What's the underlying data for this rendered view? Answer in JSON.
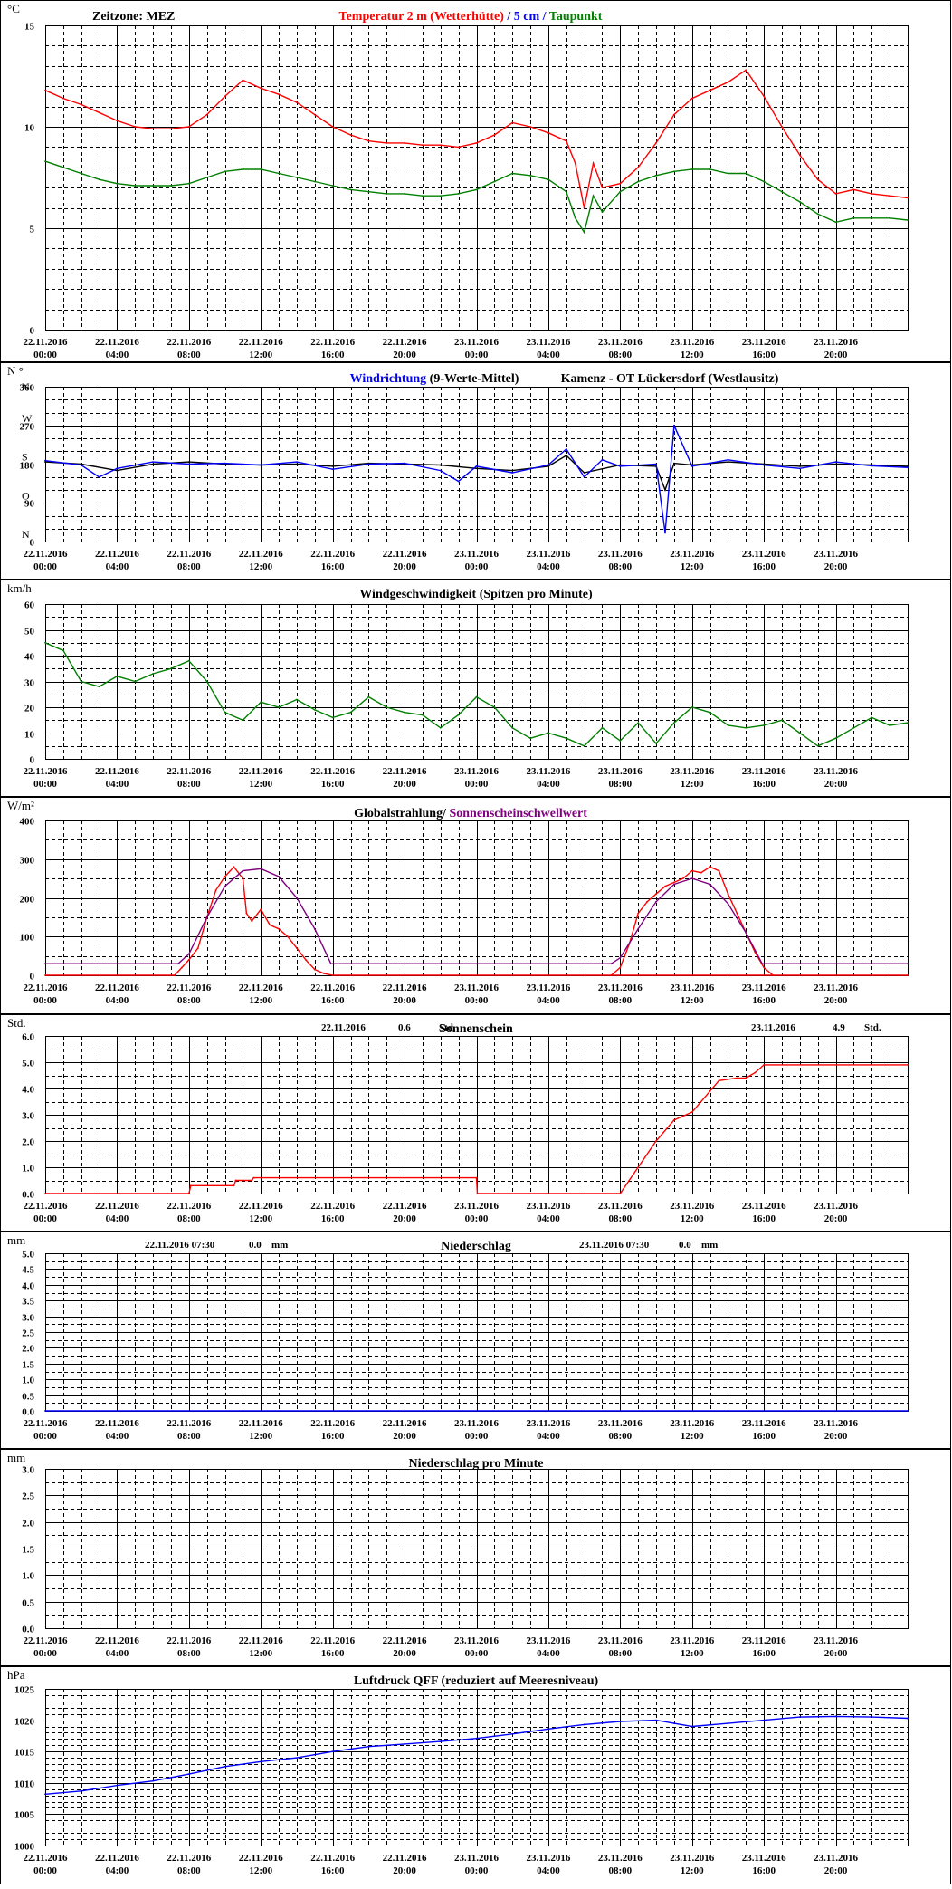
{
  "page": {
    "background": "#ffffff",
    "grid_color": "#000000"
  },
  "x_axis": {
    "tick_labels": [
      {
        "date": "22.11.2016",
        "time": "00:00"
      },
      {
        "date": "22.11.2016",
        "time": "04:00"
      },
      {
        "date": "22.11.2016",
        "time": "08:00"
      },
      {
        "date": "22.11.2016",
        "time": "12:00"
      },
      {
        "date": "22.11.2016",
        "time": "16:00"
      },
      {
        "date": "22.11.2016",
        "time": "20:00"
      },
      {
        "date": "23.11.2016",
        "time": "00:00"
      },
      {
        "date": "23.11.2016",
        "time": "04:00"
      },
      {
        "date": "23.11.2016",
        "time": "08:00"
      },
      {
        "date": "23.11.2016",
        "time": "12:00"
      },
      {
        "date": "23.11.2016",
        "time": "16:00"
      },
      {
        "date": "23.11.2016",
        "time": "20:00"
      }
    ],
    "range_hours": [
      0,
      48
    ]
  },
  "chart_data": [
    {
      "id": "temperature",
      "type": "line",
      "unit_label": "°C",
      "header_left": "Zeitzone: MEZ",
      "title_parts": [
        {
          "text": "Temperatur 2 m (Wetterhütte)",
          "color": "#ff0000"
        },
        {
          "text": " / ",
          "color": "#0000ff"
        },
        {
          "text": "5 cm",
          "color": "#0000ff"
        },
        {
          "text": " / ",
          "color": "#0000ff"
        },
        {
          "text": "Taupunkt",
          "color": "#008000"
        }
      ],
      "ylim": [
        0,
        15
      ],
      "y_ticks": [
        0,
        5,
        10,
        15
      ],
      "minor_step": 1,
      "series": [
        {
          "color": "#ff0000",
          "x": [
            0,
            1,
            2,
            3,
            4,
            5,
            6,
            7,
            8,
            9,
            10,
            11,
            12,
            13,
            14,
            15,
            16,
            17,
            18,
            19,
            20,
            21,
            22,
            23,
            24,
            25,
            26,
            27,
            28,
            29,
            29.5,
            30,
            30.5,
            31,
            32,
            33,
            34,
            35,
            36,
            37,
            38,
            39,
            40,
            41,
            42,
            43,
            44,
            45,
            46,
            47,
            48
          ],
          "y": [
            11.8,
            11.4,
            11.1,
            10.7,
            10.3,
            10.0,
            9.9,
            9.9,
            10.0,
            10.6,
            11.5,
            12.3,
            11.9,
            11.6,
            11.2,
            10.6,
            10.0,
            9.6,
            9.3,
            9.2,
            9.2,
            9.1,
            9.1,
            9.0,
            9.2,
            9.6,
            10.2,
            10.0,
            9.7,
            9.3,
            8.2,
            6.0,
            8.2,
            7.0,
            7.2,
            8.0,
            9.2,
            10.6,
            11.4,
            11.8,
            12.2,
            12.8,
            11.5,
            10.0,
            8.6,
            7.4,
            6.7,
            6.9,
            6.7,
            6.6,
            6.5
          ]
        },
        {
          "color": "#008000",
          "x": [
            0,
            1,
            2,
            3,
            4,
            5,
            6,
            7,
            8,
            9,
            10,
            11,
            12,
            13,
            14,
            15,
            16,
            17,
            18,
            19,
            20,
            21,
            22,
            23,
            24,
            25,
            26,
            27,
            28,
            29,
            29.5,
            30,
            30.5,
            31,
            32,
            33,
            34,
            35,
            36,
            37,
            38,
            39,
            40,
            41,
            42,
            43,
            44,
            45,
            46,
            47,
            48
          ],
          "y": [
            8.3,
            8.0,
            7.7,
            7.4,
            7.2,
            7.1,
            7.1,
            7.1,
            7.2,
            7.5,
            7.8,
            7.9,
            7.9,
            7.7,
            7.5,
            7.3,
            7.1,
            6.9,
            6.8,
            6.7,
            6.7,
            6.6,
            6.6,
            6.7,
            6.9,
            7.3,
            7.7,
            7.6,
            7.4,
            6.8,
            5.5,
            4.8,
            6.6,
            5.8,
            6.8,
            7.3,
            7.6,
            7.8,
            7.9,
            7.9,
            7.7,
            7.7,
            7.3,
            6.8,
            6.3,
            5.7,
            5.3,
            5.5,
            5.5,
            5.5,
            5.4
          ]
        }
      ]
    },
    {
      "id": "wind_direction",
      "type": "line",
      "unit_label": "N °",
      "title_parts": [
        {
          "text": "Windrichtung",
          "color": "#0000ff"
        },
        {
          "text": " (9-Werte-Mittel)",
          "color": "#000000"
        }
      ],
      "station": "Kamenz - OT Lückersdorf (Westlausitz)",
      "ylim": [
        0,
        360
      ],
      "y_ticks": [
        0,
        90,
        180,
        270,
        360
      ],
      "compass_labels": [
        {
          "text": "N",
          "value": 360
        },
        {
          "text": "W",
          "value": 270
        },
        {
          "text": "S",
          "value": 180
        },
        {
          "text": "O",
          "value": 90
        },
        {
          "text": "N",
          "value": 0
        }
      ],
      "minor_step": 30,
      "series": [
        {
          "color": "#000000",
          "x": [
            0,
            2,
            4,
            6,
            8,
            10,
            12,
            14,
            16,
            18,
            20,
            22,
            24,
            26,
            28,
            29,
            30,
            32,
            34,
            34.5,
            35,
            36,
            38,
            40,
            42,
            44,
            46,
            48
          ],
          "y": [
            185,
            180,
            165,
            180,
            185,
            180,
            178,
            180,
            175,
            182,
            180,
            178,
            170,
            165,
            175,
            200,
            160,
            178,
            175,
            120,
            182,
            178,
            185,
            180,
            175,
            180,
            178,
            175
          ]
        },
        {
          "color": "#0000ff",
          "x": [
            0,
            2,
            3,
            4,
            6,
            8,
            10,
            12,
            14,
            16,
            18,
            20,
            22,
            23,
            24,
            26,
            28,
            29,
            30,
            31,
            32,
            34,
            34.5,
            35,
            36,
            38,
            40,
            42,
            44,
            46,
            48
          ],
          "y": [
            188,
            178,
            150,
            170,
            185,
            180,
            182,
            178,
            185,
            168,
            180,
            182,
            165,
            140,
            175,
            160,
            178,
            215,
            150,
            190,
            175,
            180,
            20,
            270,
            175,
            190,
            178,
            170,
            185,
            176,
            172
          ]
        }
      ]
    },
    {
      "id": "wind_speed",
      "type": "line",
      "unit_label": "km/h",
      "title": "Windgeschwindigkeit (Spitzen pro Minute)",
      "ylim": [
        0,
        60
      ],
      "y_ticks": [
        0,
        10,
        20,
        30,
        40,
        50,
        60
      ],
      "minor_step": 5,
      "series": [
        {
          "color": "#008000",
          "x": [
            0,
            1,
            2,
            3,
            4,
            5,
            6,
            7,
            8,
            9,
            10,
            11,
            12,
            13,
            14,
            15,
            16,
            17,
            18,
            19,
            20,
            21,
            22,
            23,
            24,
            25,
            26,
            27,
            28,
            29,
            30,
            31,
            32,
            33,
            34,
            35,
            36,
            37,
            38,
            39,
            40,
            41,
            42,
            43,
            44,
            45,
            46,
            47,
            48
          ],
          "y": [
            45,
            42,
            30,
            28,
            32,
            30,
            33,
            35,
            38,
            30,
            18,
            15,
            22,
            20,
            23,
            19,
            16,
            18,
            24,
            20,
            18,
            17,
            12,
            17,
            24,
            20,
            12,
            8,
            10,
            8,
            5,
            12,
            7,
            14,
            6,
            14,
            20,
            18,
            13,
            12,
            13,
            15,
            10,
            5,
            8,
            12,
            16,
            13,
            14
          ]
        }
      ]
    },
    {
      "id": "global_radiation",
      "type": "line",
      "unit_label": "W/m²",
      "title_parts": [
        {
          "text": "Globalstrahlung/",
          "color": "#000000"
        },
        {
          "text": " Sonnenscheinschwellwert",
          "color": "#800080"
        }
      ],
      "ylim": [
        0,
        400
      ],
      "y_ticks": [
        0,
        100,
        200,
        300,
        400
      ],
      "minor_step": 50,
      "series": [
        {
          "color": "#ff0000",
          "x": [
            0,
            7.2,
            7.6,
            8,
            8.5,
            9,
            9.5,
            10,
            10.5,
            11,
            11.2,
            11.5,
            12,
            12.5,
            13,
            13.5,
            14,
            14.5,
            15,
            15.5,
            16,
            48
          ],
          "y": [
            0,
            0,
            20,
            40,
            70,
            150,
            220,
            255,
            280,
            250,
            160,
            140,
            170,
            130,
            120,
            100,
            70,
            40,
            15,
            5,
            0,
            0
          ]
        },
        {
          "color": "#ff0000",
          "x": [
            31.5,
            32,
            32.5,
            33,
            33.5,
            34,
            34.5,
            35,
            35.5,
            36,
            36.5,
            37,
            37.5,
            38,
            38.5,
            39,
            39.5,
            40,
            40.5
          ],
          "y": [
            0,
            20,
            80,
            160,
            190,
            210,
            230,
            240,
            250,
            270,
            265,
            280,
            270,
            210,
            160,
            110,
            60,
            20,
            0
          ]
        },
        {
          "color": "#800080",
          "x": [
            0,
            7.4,
            8,
            9,
            10,
            11,
            12,
            13,
            14,
            15,
            15.9,
            31.5,
            32,
            33,
            34,
            35,
            36,
            37,
            38,
            39,
            39.9,
            48
          ],
          "y": [
            30,
            30,
            55,
            150,
            230,
            270,
            275,
            255,
            200,
            120,
            30,
            30,
            45,
            120,
            190,
            235,
            250,
            235,
            185,
            110,
            30,
            30
          ]
        }
      ]
    },
    {
      "id": "sunshine",
      "type": "line",
      "unit_label": "Std.",
      "title": "Sonnenschein",
      "daily_totals": [
        {
          "date": "22.11.2016",
          "value": "0.6",
          "unit": "Std."
        },
        {
          "date": "23.11.2016",
          "value": "4.9",
          "unit": "Std."
        }
      ],
      "ylim": [
        0,
        6
      ],
      "y_ticks": [
        0,
        1,
        2,
        3,
        4,
        5,
        6
      ],
      "y_tick_labels": [
        "0.0",
        "1.0",
        "2.0",
        "3.0",
        "4.0",
        "5.0",
        "6.0"
      ],
      "minor_step": 0.5,
      "series": [
        {
          "color": "#ff0000",
          "x": [
            0,
            8,
            8.1,
            10.5,
            10.6,
            11.5,
            11.6,
            24,
            24.05,
            32,
            33,
            34,
            35,
            36,
            37,
            37.5,
            38.5,
            39,
            39.5,
            40,
            48
          ],
          "y": [
            0,
            0,
            0.3,
            0.3,
            0.5,
            0.5,
            0.6,
            0.6,
            0,
            0,
            1.0,
            2.0,
            2.8,
            3.1,
            3.9,
            4.3,
            4.4,
            4.4,
            4.6,
            4.9,
            4.9
          ]
        }
      ]
    },
    {
      "id": "precipitation",
      "type": "line",
      "unit_label": "mm",
      "title": "Niederschlag",
      "daily_totals": [
        {
          "date": "22.11.2016 07:30",
          "value": "0.0",
          "unit": "mm"
        },
        {
          "date": "23.11.2016 07:30",
          "value": "0.0",
          "unit": "mm"
        }
      ],
      "ylim": [
        0,
        5
      ],
      "y_ticks": [
        0,
        0.5,
        1,
        1.5,
        2,
        2.5,
        3,
        3.5,
        4,
        4.5,
        5
      ],
      "y_tick_labels": [
        "0.0",
        "0.5",
        "1.0",
        "1.5",
        "2.0",
        "2.5",
        "3.0",
        "3.5",
        "4.0",
        "4.5",
        "5.0"
      ],
      "minor_step": 0.25,
      "series": [
        {
          "color": "#0000ff",
          "x": [
            0,
            48
          ],
          "y": [
            0,
            0
          ]
        }
      ]
    },
    {
      "id": "precipitation_per_minute",
      "type": "line",
      "unit_label": "mm",
      "title": "Niederschlag pro Minute",
      "ylim": [
        0,
        3
      ],
      "y_ticks": [
        0,
        0.5,
        1,
        1.5,
        2,
        2.5,
        3
      ],
      "y_tick_labels": [
        "0.0",
        "0.5",
        "1.0",
        "1.5",
        "2.0",
        "2.5",
        "3.0"
      ],
      "minor_step": 0.25,
      "series": []
    },
    {
      "id": "pressure",
      "type": "line",
      "unit_label": "hPa",
      "title": "Luftdruck QFF (reduziert auf Meeresniveau)",
      "ylim": [
        1000,
        1025
      ],
      "y_ticks": [
        1000,
        1005,
        1010,
        1015,
        1020,
        1025
      ],
      "minor_step": 1,
      "series": [
        {
          "color": "#0000ff",
          "x": [
            0,
            2,
            4,
            6,
            8,
            10,
            12,
            14,
            16,
            18,
            20,
            22,
            24,
            26,
            28,
            30,
            32,
            34,
            35,
            36,
            38,
            40,
            42,
            44,
            46,
            48
          ],
          "y": [
            1008.2,
            1008.7,
            1009.6,
            1010.3,
            1011.4,
            1012.6,
            1013.4,
            1014.0,
            1015.0,
            1015.8,
            1016.2,
            1016.6,
            1017.1,
            1017.8,
            1018.6,
            1019.3,
            1019.8,
            1020.0,
            1019.5,
            1019.0,
            1019.5,
            1020.0,
            1020.5,
            1020.6,
            1020.5,
            1020.3
          ]
        }
      ]
    }
  ]
}
